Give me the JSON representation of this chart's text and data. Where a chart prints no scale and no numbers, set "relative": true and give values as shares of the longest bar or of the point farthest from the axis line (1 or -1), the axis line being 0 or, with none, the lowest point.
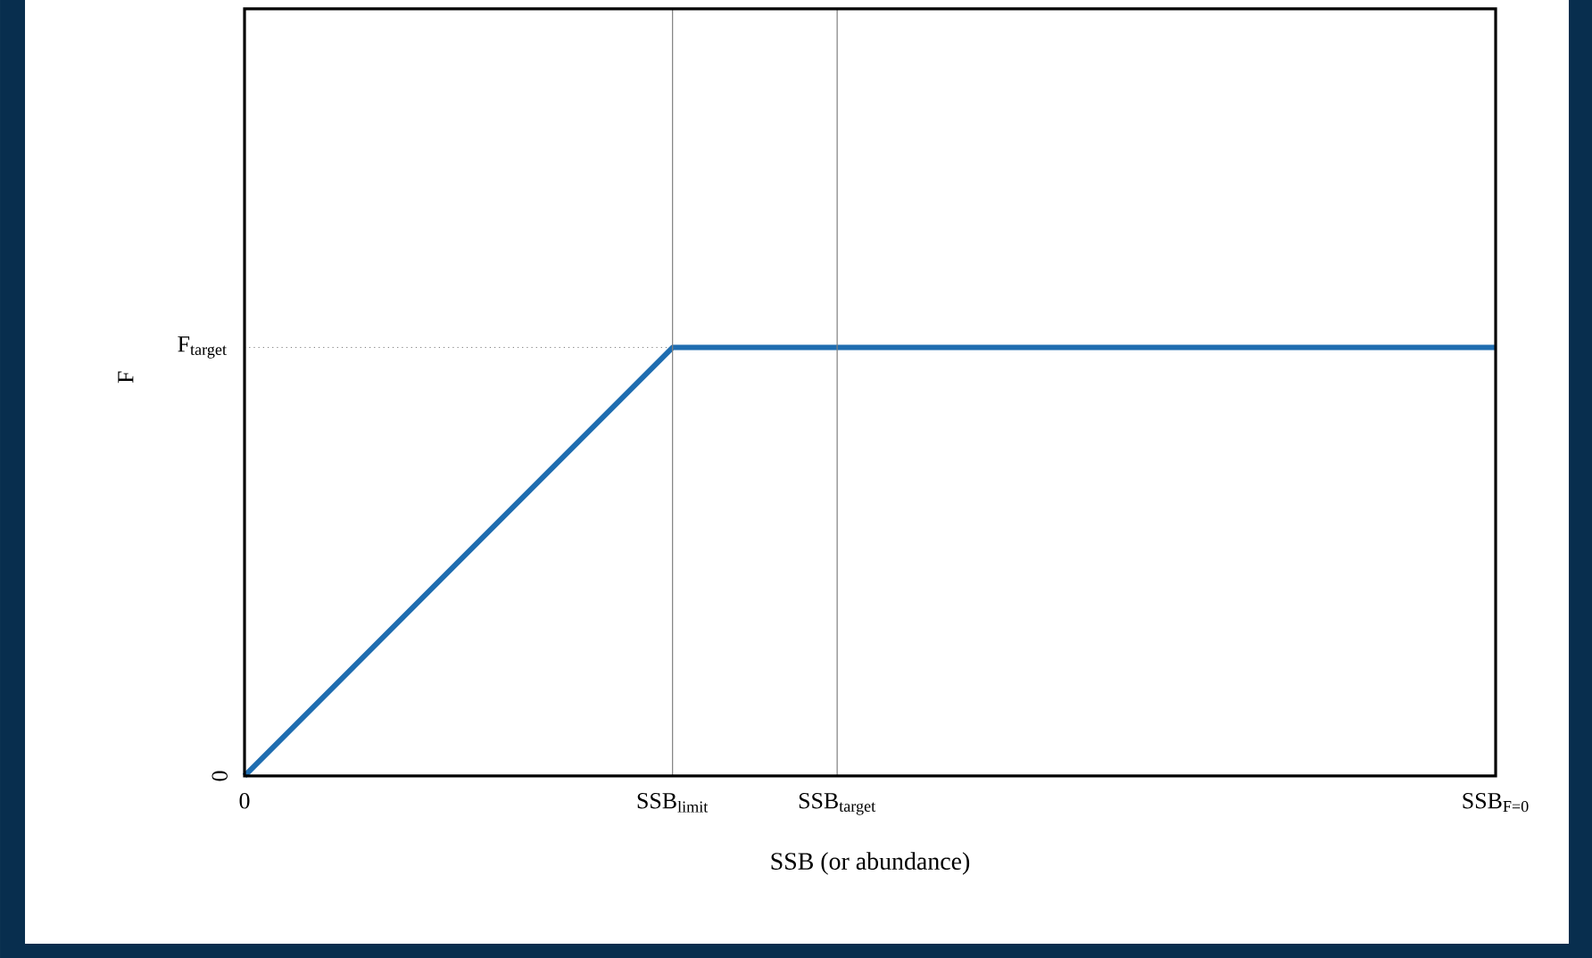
{
  "chart_data": {
    "type": "line",
    "relative": true,
    "xlabel": "SSB  (or abundance)",
    "ylabel": "F",
    "grid": "x",
    "categories": [
      "0",
      null,
      null,
      null,
      null,
      null,
      null,
      null,
      null,
      null,
      null,
      null,
      null,
      "SSB$_{limit}$",
      null,
      null,
      null,
      null,
      "SSB$_{target}$",
      null,
      null,
      null,
      null,
      null,
      null,
      null,
      null,
      null,
      null,
      null,
      null,
      null,
      null,
      null,
      null,
      null,
      null,
      null,
      "SSB$_{F=0}$"
    ],
    "series": [
      {
        "color": "#1f6db0",
        "values": [
          0,
          null,
          null,
          null,
          null,
          null,
          null,
          null,
          null,
          null,
          null,
          null,
          null,
          1,
          null,
          null,
          null,
          null,
          null,
          null,
          null,
          null,
          null,
          null,
          null,
          null,
          null,
          null,
          null,
          null,
          null,
          null,
          null,
          null,
          null,
          null,
          null,
          null,
          1
        ]
      }
    ],
    "ref_lines": [
      {
        "axis": "y",
        "value": 1,
        "label": "F$_{target}$",
        "color": "#808080",
        "line_style": "dotted"
      }
    ],
    "annotations": [
      "0"
    ]
  }
}
